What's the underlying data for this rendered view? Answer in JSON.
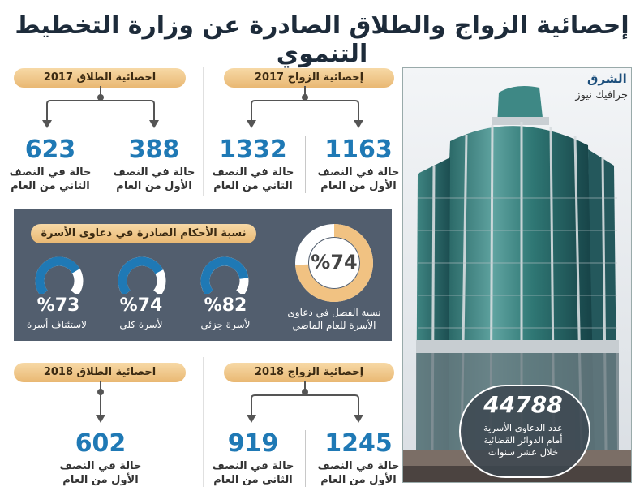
{
  "title": "إحصائية الزواج والطلاق الصادرة عن وزارة التخطيط التنموي",
  "logo": {
    "name": "الشرق",
    "sub": "جرافيك نيوز"
  },
  "marriage_2017": {
    "label": "إحصائية الزواج 2017",
    "first": {
      "value": "1163",
      "line1": "حالة في النصف",
      "line2": "الأول من العام"
    },
    "second": {
      "value": "1332",
      "line1": "حالة في النصف",
      "line2": "الثاني من العام"
    }
  },
  "divorce_2017": {
    "label": "احصائية الطلاق 2017",
    "first": {
      "value": "388",
      "line1": "حالة في النصف",
      "line2": "الأول من العام"
    },
    "second": {
      "value": "623",
      "line1": "حالة في النصف",
      "line2": "الثاني من العام"
    }
  },
  "rulings": {
    "label": "نسبة الأحكام الصادرة في دعاوى الأسرة",
    "main": {
      "value": "%74",
      "fraction": 0.74,
      "line1": "نسبة الفصل في دعاوى",
      "line2": "الأسرة للعام الماضي"
    },
    "items": [
      {
        "value": "%82",
        "fraction": 0.82,
        "caption": "لأسرة جزئي"
      },
      {
        "value": "%74",
        "fraction": 0.74,
        "caption": "لأسرة كلي"
      },
      {
        "value": "%73",
        "fraction": 0.73,
        "caption": "لاستئناف أسرة"
      }
    ]
  },
  "marriage_2018": {
    "label": "إحصائية الزواج 2018",
    "first": {
      "value": "1245",
      "line1": "حالة في النصف",
      "line2": "الأول من العام"
    },
    "second": {
      "value": "919",
      "line1": "حالة في النصف",
      "line2": "الثاني من العام"
    }
  },
  "divorce_2018": {
    "label": "احصائية الطلاق 2018",
    "first": {
      "value": "602",
      "line1": "حالة في النصف",
      "line2": "الأول من العام"
    }
  },
  "cases": {
    "value": "44788",
    "line1": "عدد الدعاوى الأسرية",
    "line2": "أمام الدوائر القضائية",
    "line3": "خلال عشر سنوات"
  },
  "colors": {
    "accent": "#1f79b5",
    "pill": "#e9b873",
    "band": "#525e6e",
    "donut_track": "#ffffff"
  }
}
